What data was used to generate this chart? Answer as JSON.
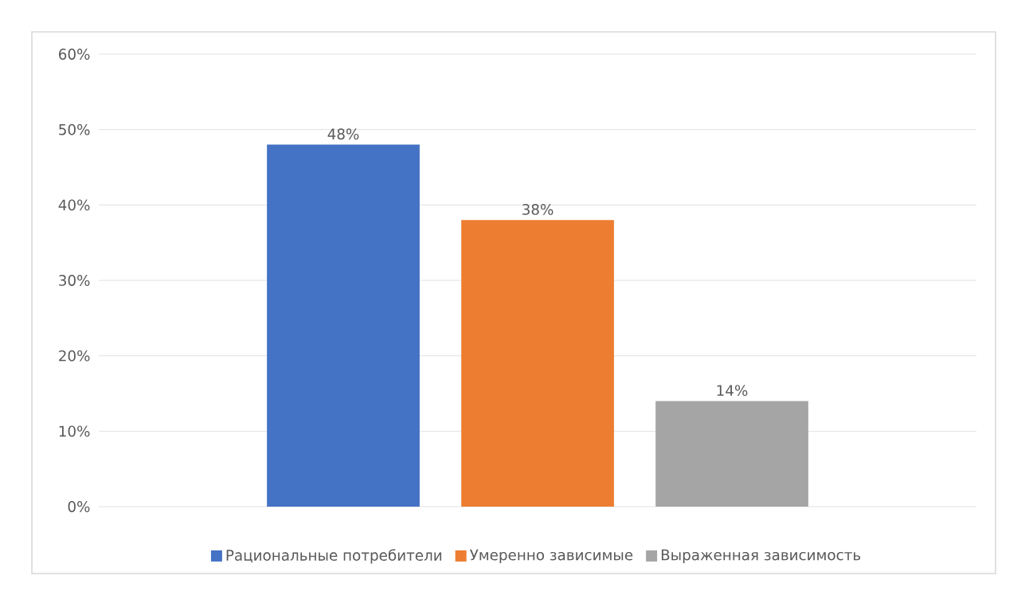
{
  "chart_data": {
    "type": "bar",
    "categories": [
      null
    ],
    "series": [
      {
        "name": "Рациональные потребители",
        "color": "#4472c4",
        "values": [
          48
        ],
        "value_labels": [
          "48%"
        ]
      },
      {
        "name": "Умеренно зависимые",
        "color": "#ed7d31",
        "values": [
          38
        ],
        "value_labels": [
          "38%"
        ]
      },
      {
        "name": "Выраженная зависимость",
        "color": "#a5a5a5",
        "values": [
          14
        ],
        "value_labels": [
          "14%"
        ]
      }
    ],
    "ylim": [
      0,
      60
    ],
    "yticks": [
      {
        "value": 0,
        "label": "0%"
      },
      {
        "value": 10,
        "label": "10%"
      },
      {
        "value": 20,
        "label": "20%"
      },
      {
        "value": 30,
        "label": "30%"
      },
      {
        "value": 40,
        "label": "40%"
      },
      {
        "value": 50,
        "label": "50%"
      },
      {
        "value": 60,
        "label": "60%"
      }
    ],
    "grid": "y",
    "legend": "bottom"
  }
}
